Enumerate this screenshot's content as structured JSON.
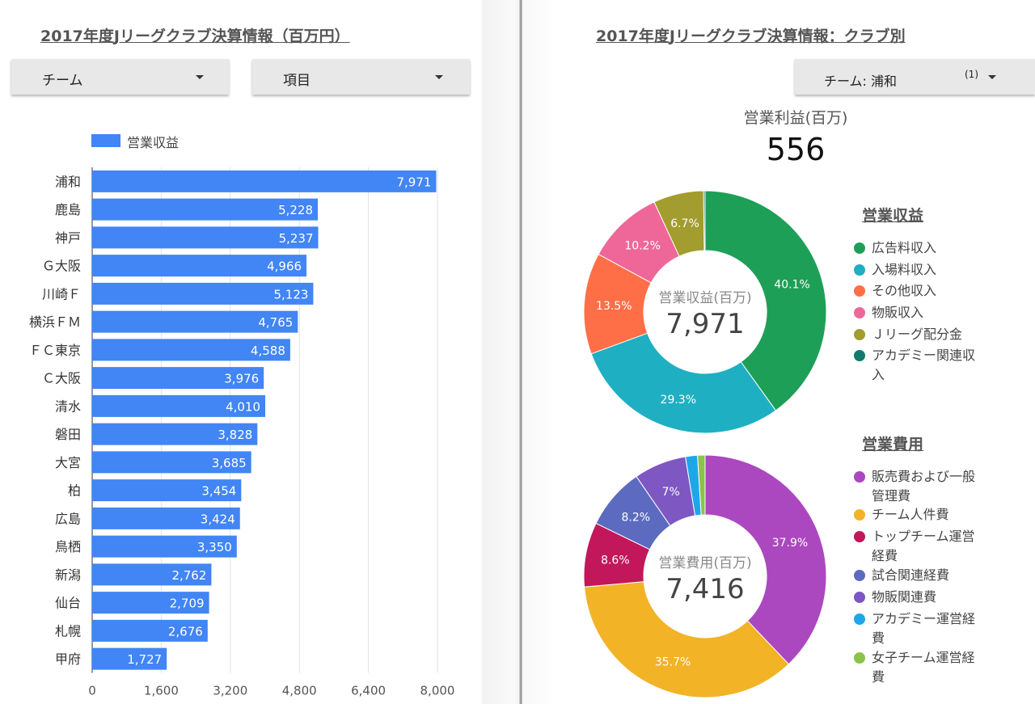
{
  "left": {
    "title": "2017年度Jリーグクラブ決算情報（百万円）",
    "dropdowns": {
      "team": "チーム",
      "item": "項目"
    },
    "legend": "営業収益"
  },
  "right": {
    "title": "2017年度Jリーグクラブ決算情報：クラブ別",
    "team_filter": {
      "label": "チーム",
      "value": "浦和",
      "count": "(1)"
    },
    "kpi": {
      "label": "営業利益(百万)",
      "value": "556"
    }
  },
  "chart_data": [
    {
      "type": "bar",
      "orientation": "horizontal",
      "series": [
        {
          "name": "営業収益",
          "color": "#4285f4",
          "values": [
            7971,
            5228,
            5237,
            4966,
            5123,
            4765,
            4588,
            3976,
            4010,
            3828,
            3685,
            3454,
            3424,
            3350,
            2762,
            2709,
            2676,
            1727
          ]
        }
      ],
      "categories": [
        "浦和",
        "鹿島",
        "神戸",
        "Ｇ大阪",
        "川崎Ｆ",
        "横浜ＦＭ",
        "ＦＣ東京",
        "Ｃ大阪",
        "清水",
        "磐田",
        "大宮",
        "柏",
        "広島",
        "鳥栖",
        "新潟",
        "仙台",
        "札幌",
        "甲府"
      ],
      "value_labels": [
        "7,971",
        "5,228",
        "5,237",
        "4,966",
        "5,123",
        "4,765",
        "4,588",
        "3,976",
        "4,010",
        "3,828",
        "3,685",
        "3,454",
        "3,424",
        "3,350",
        "2,762",
        "2,709",
        "2,676",
        "1,727"
      ],
      "xlim": [
        0,
        8000
      ],
      "xticks": [
        "0",
        "1,600",
        "3,200",
        "4,800",
        "6,400",
        "8,000"
      ],
      "grid": true,
      "legend": "top-left"
    },
    {
      "type": "pie",
      "donut": true,
      "title": "営業収益",
      "center_label": "営業収益(百万)",
      "center_value": "7,971",
      "slices": [
        {
          "label": "広告料収入",
          "value": 40.1,
          "display": "40.1%",
          "color": "#1e9f57"
        },
        {
          "label": "入場料収入",
          "value": 29.3,
          "display": "29.3%",
          "color": "#1fafc2"
        },
        {
          "label": "その他収入",
          "value": 13.5,
          "display": "13.5%",
          "color": "#ff6f47"
        },
        {
          "label": "物販収入",
          "value": 10.2,
          "display": "10.2%",
          "color": "#ef6799"
        },
        {
          "label": "Ｊリーグ配分金",
          "value": 6.7,
          "display": "6.7%",
          "color": "#a39c2e"
        },
        {
          "label": "アカデミー関連収入",
          "value": 0.2,
          "display": "",
          "color": "#137a6e"
        }
      ],
      "legend_labels": [
        "広告料収入",
        "入場料収入",
        "その他収入",
        "物販収入",
        "Ｊリーグ配分金",
        "アカデミー関連収\n入"
      ],
      "legend": "right"
    },
    {
      "type": "pie",
      "donut": true,
      "title": "営業費用",
      "center_label": "営業費用(百万)",
      "center_value": "7,416",
      "slices": [
        {
          "label": "販売費および一般管理費",
          "value": 37.9,
          "display": "37.9%",
          "color": "#ab48bf"
        },
        {
          "label": "チーム人件費",
          "value": 35.7,
          "display": "35.7%",
          "color": "#f2b327"
        },
        {
          "label": "トップチーム運営経費",
          "value": 8.6,
          "display": "8.6%",
          "color": "#c2185b"
        },
        {
          "label": "試合関連経費",
          "value": 8.2,
          "display": "8.2%",
          "color": "#5c6bc0"
        },
        {
          "label": "物販関連費",
          "value": 7.0,
          "display": "7%",
          "color": "#7e57c2"
        },
        {
          "label": "アカデミー運営経費",
          "value": 1.6,
          "display": "",
          "color": "#1ea7e8"
        },
        {
          "label": "女子チーム運営経費",
          "value": 1.0,
          "display": "",
          "color": "#8bc34a"
        }
      ],
      "legend_labels": [
        "販売費および一般\n管理費",
        "チーム人件費",
        "トップチーム運営\n経費",
        "試合関連経費",
        "物販関連費",
        "アカデミー運営経\n費",
        "女子チーム運営経\n費"
      ],
      "legend": "right"
    }
  ]
}
